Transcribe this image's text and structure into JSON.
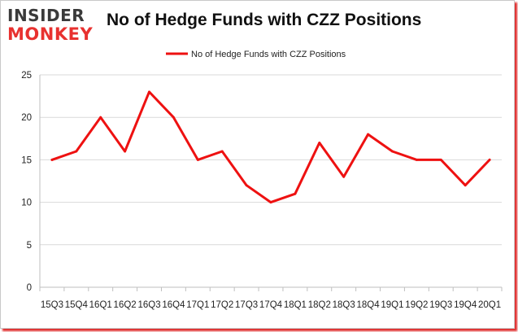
{
  "logo": {
    "line1": "INSIDER",
    "line2": "MONKEY"
  },
  "chart_data": {
    "type": "line",
    "title": "No of Hedge Funds with CZZ Positions",
    "xlabel": "",
    "ylabel": "",
    "categories": [
      "15Q3",
      "15Q4",
      "16Q1",
      "16Q2",
      "16Q3",
      "16Q4",
      "17Q1",
      "17Q2",
      "17Q3",
      "17Q4",
      "18Q1",
      "18Q2",
      "18Q3",
      "18Q4",
      "19Q1",
      "19Q2",
      "19Q3",
      "19Q4",
      "20Q1"
    ],
    "series": [
      {
        "name": "No of Hedge Funds with CZZ Positions",
        "values": [
          15,
          16,
          20,
          16,
          23,
          20,
          15,
          16,
          12,
          10,
          11,
          17,
          13,
          18,
          16,
          15,
          15,
          12,
          15
        ]
      }
    ],
    "ylim": [
      0,
      25
    ],
    "yticks": [
      0,
      5,
      10,
      15,
      20,
      25
    ],
    "grid": true,
    "legend": "top-center",
    "colors": {
      "line": "#ee1111",
      "grid": "#d9d9d9",
      "axis": "#bfbfbf"
    }
  }
}
